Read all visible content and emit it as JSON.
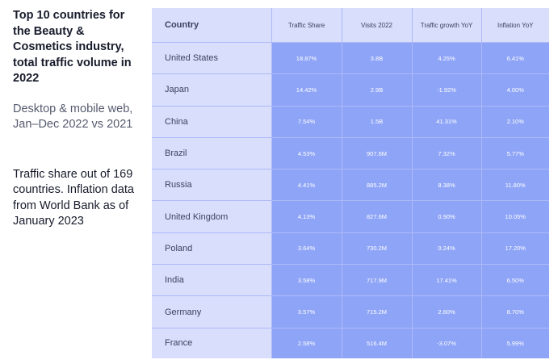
{
  "left_panel": {
    "title": "Top 10 countries for the Beauty & Cosmetics industry, total traffic volume in 2022",
    "subtitle": "Desktop & mobile web, Jan–Dec 2022 vs 2021",
    "note": "Traffic share out of 169 countries. Inflation data from World Bank as of January 2023"
  },
  "chart_data": {
    "type": "table",
    "columns": [
      "Country",
      "Traffic Share",
      "Visits 2022",
      "Traffic growth YoY",
      "Inflation YoY"
    ],
    "rows": [
      [
        "United States",
        "18.87%",
        "3.8B",
        "4.25%",
        "6.41%"
      ],
      [
        "Japan",
        "14.42%",
        "2.9B",
        "-1.92%",
        "4.00%"
      ],
      [
        "China",
        "7.54%",
        "1.5B",
        "41.31%",
        "2.10%"
      ],
      [
        "Brazil",
        "4.53%",
        "907.6M",
        "7.32%",
        "5.77%"
      ],
      [
        "Russia",
        "4.41%",
        "885.2M",
        "8.38%",
        "11.80%"
      ],
      [
        "United Kingdom",
        "4.13%",
        "827.6M",
        "0.90%",
        "10.05%"
      ],
      [
        "Poland",
        "3.64%",
        "730.2M",
        "0.24%",
        "17.20%"
      ],
      [
        "India",
        "3.58%",
        "717.9M",
        "17.41%",
        "6.50%"
      ],
      [
        "Germany",
        "3.57%",
        "715.2M",
        "2.60%",
        "8.70%"
      ],
      [
        "France",
        "2.58%",
        "516.4M",
        "-3.07%",
        "5.99%"
      ]
    ]
  }
}
